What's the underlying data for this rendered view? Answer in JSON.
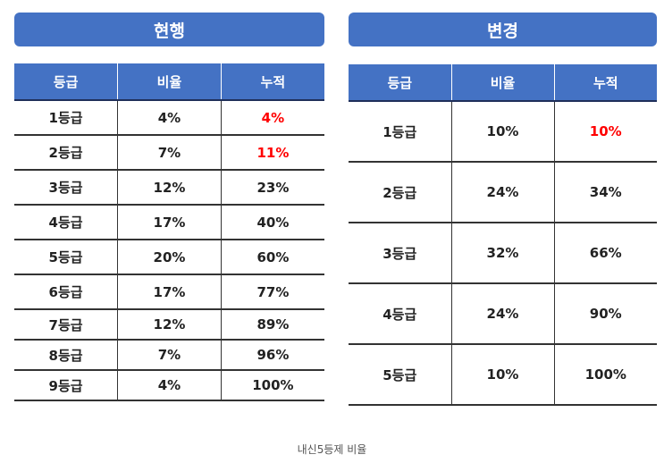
{
  "left": {
    "title": "현행",
    "headers": [
      "등급",
      "비율",
      "누적"
    ],
    "rows": [
      {
        "grade": "1등급",
        "ratio": "4%",
        "cumulative": "4%"
      },
      {
        "grade": "2등급",
        "ratio": "7%",
        "cumulative": "11%"
      },
      {
        "grade": "3등급",
        "ratio": "12%",
        "cumulative": "23%"
      },
      {
        "grade": "4등급",
        "ratio": "17%",
        "cumulative": "40%"
      },
      {
        "grade": "5등급",
        "ratio": "20%",
        "cumulative": "60%"
      },
      {
        "grade": "6등급",
        "ratio": "17%",
        "cumulative": "77%"
      },
      {
        "grade": "7등급",
        "ratio": "12%",
        "cumulative": "89%"
      },
      {
        "grade": "8등급",
        "ratio": "7%",
        "cumulative": "96%"
      },
      {
        "grade": "9등급",
        "ratio": "4%",
        "cumulative": "100%"
      }
    ]
  },
  "right": {
    "title": "변경",
    "headers": [
      "등급",
      "비율",
      "누적"
    ],
    "rows": [
      {
        "grade": "1등급",
        "ratio": "10%",
        "cumulative": "10%"
      },
      {
        "grade": "2등급",
        "ratio": "24%",
        "cumulative": "34%"
      },
      {
        "grade": "3등급",
        "ratio": "32%",
        "cumulative": "66%"
      },
      {
        "grade": "4등급",
        "ratio": "24%",
        "cumulative": "90%"
      },
      {
        "grade": "5등급",
        "ratio": "10%",
        "cumulative": "100%"
      }
    ]
  },
  "colors": {
    "header": "#4472c4",
    "highlight": "#ff0000"
  },
  "caption": "내신5등제 비율"
}
